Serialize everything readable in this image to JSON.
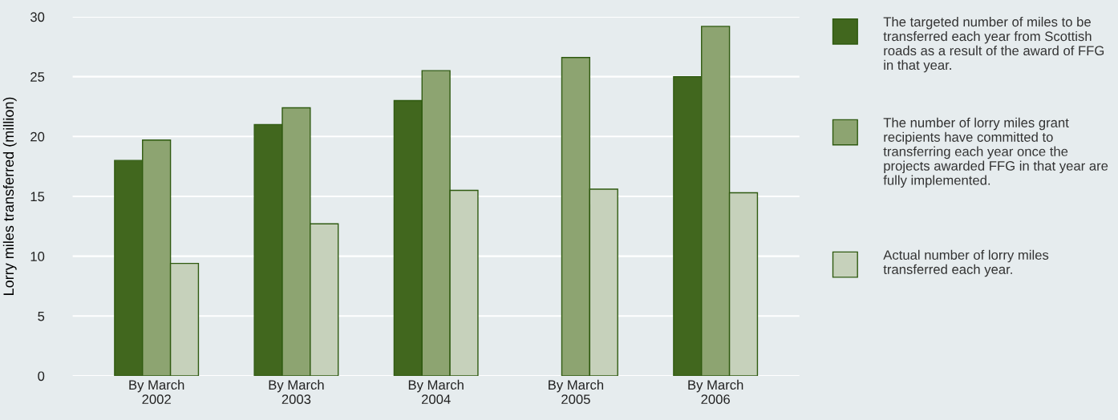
{
  "chart_data": {
    "type": "bar",
    "ylabel": "Lorry miles transferred (million)",
    "categories": [
      "By March\n2002",
      "By March\n2003",
      "By March\n2004",
      "By March\n2005",
      "By March\n2006"
    ],
    "series": [
      {
        "name": "The targeted number of miles to be transferred each year from Scottish roads as a result of the award of FFG in that year.",
        "color": "#41671e",
        "values": [
          18,
          21,
          23,
          null,
          25
        ]
      },
      {
        "name": "The number of lorry miles grant recipients have committed to transferring each year once the projects awarded FFG in that year are fully implemented.",
        "color": "#8da471",
        "values": [
          19.7,
          22.4,
          25.5,
          26.6,
          29.2
        ]
      },
      {
        "name": "Actual number of lorry miles transferred each year.",
        "color": "#c6d1bb",
        "values": [
          9.4,
          12.7,
          15.5,
          15.6,
          15.3
        ]
      }
    ],
    "ylim": [
      0,
      30
    ],
    "yticks": [
      0,
      5,
      10,
      15,
      20,
      25,
      30
    ],
    "grid": "y",
    "legend": "right"
  }
}
